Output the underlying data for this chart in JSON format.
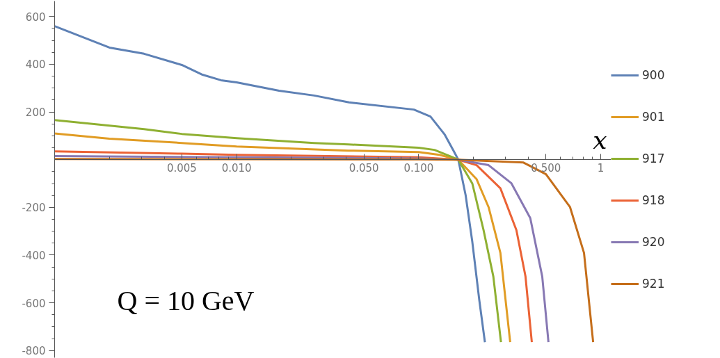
{
  "chart_data": {
    "type": "line",
    "xlabel": "x",
    "log": "x",
    "grid": false,
    "legend": "right",
    "marker": "none",
    "line_style": "solid",
    "xlim": [
      0.001,
      1.14
    ],
    "ylim": [
      -830,
      665
    ],
    "xticks": [
      {
        "value": 0.002,
        "label": null
      },
      {
        "value": 0.003,
        "label": null
      },
      {
        "value": 0.004,
        "label": null
      },
      "0.005",
      {
        "value": 0.006,
        "label": null
      },
      {
        "value": 0.007,
        "label": null
      },
      {
        "value": 0.008,
        "label": null
      },
      {
        "value": 0.009,
        "label": null
      },
      {
        "value": 0.01,
        "label": "0.010"
      },
      {
        "value": 0.02,
        "label": null
      },
      {
        "value": 0.03,
        "label": null
      },
      {
        "value": 0.04,
        "label": null
      },
      {
        "value": 0.05,
        "label": "0.050"
      },
      {
        "value": 0.06,
        "label": null
      },
      {
        "value": 0.07,
        "label": null
      },
      {
        "value": 0.08,
        "label": null
      },
      {
        "value": 0.09,
        "label": null
      },
      {
        "value": 0.1,
        "label": "0.100"
      },
      {
        "value": 0.2,
        "label": null
      },
      {
        "value": 0.3,
        "label": null
      },
      {
        "value": 0.4,
        "label": null
      },
      {
        "value": 0.5,
        "label": "0.500"
      },
      {
        "value": 0.6,
        "label": null
      },
      {
        "value": 0.7,
        "label": null
      },
      {
        "value": 0.8,
        "label": null
      },
      {
        "value": 0.9,
        "label": null
      },
      1
    ],
    "yticks": [
      -800,
      {
        "value": -750,
        "label": null
      },
      {
        "value": -700,
        "label": null
      },
      {
        "value": -650,
        "label": null
      },
      -600,
      {
        "value": -550,
        "label": null
      },
      {
        "value": -500,
        "label": null
      },
      {
        "value": -450,
        "label": null
      },
      -400,
      {
        "value": -350,
        "label": null
      },
      {
        "value": -300,
        "label": null
      },
      {
        "value": -250,
        "label": null
      },
      -200,
      {
        "value": -150,
        "label": null
      },
      {
        "value": -100,
        "label": null
      },
      {
        "value": -50,
        "label": null
      },
      {
        "value": 50,
        "label": null
      },
      {
        "value": 100,
        "label": null
      },
      {
        "value": 150,
        "label": null
      },
      200,
      {
        "value": 250,
        "label": null
      },
      {
        "value": 300,
        "label": null
      },
      {
        "value": 350,
        "label": null
      },
      400,
      {
        "value": 450,
        "label": null
      },
      {
        "value": 500,
        "label": null
      },
      {
        "value": 550,
        "label": null
      },
      600
    ],
    "annotations": [
      "Q = 10 GeV"
    ],
    "series": [
      {
        "name": "900",
        "color": "#5e81b5",
        "x": [
          0.001,
          0.002,
          0.0031,
          0.005,
          0.0065,
          0.0082,
          0.01,
          0.0171,
          0.0266,
          0.0414,
          0.094,
          0.116,
          0.139,
          0.156,
          0.165,
          0.181,
          0.197,
          0.215,
          0.231
        ],
        "values": [
          560,
          470,
          444,
          397,
          356,
          333,
          324,
          289,
          269,
          240,
          210,
          181,
          105,
          35,
          0,
          -149,
          -345,
          -587,
          -765
        ]
      },
      {
        "name": "901",
        "color": "#e19c24",
        "x": [
          0.001,
          0.002,
          0.005,
          0.01,
          0.041,
          0.1,
          0.13,
          0.165,
          0.208,
          0.242,
          0.281,
          0.318
        ],
        "values": [
          110,
          88,
          70,
          55,
          38,
          32,
          20,
          0,
          -82,
          -199,
          -391,
          -765
        ]
      },
      {
        "name": "917",
        "color": "#8fb032",
        "x": [
          0.001,
          0.0031,
          0.005,
          0.01,
          0.0266,
          0.041,
          0.1,
          0.122,
          0.146,
          0.165,
          0.197,
          0.227,
          0.257,
          0.283
        ],
        "values": [
          166,
          128,
          108,
          90,
          70,
          64,
          50,
          41,
          17,
          0,
          -100,
          -295,
          -490,
          -765
        ]
      },
      {
        "name": "918",
        "color": "#eb6235",
        "x": [
          0.001,
          0.005,
          0.01,
          0.1,
          0.165,
          0.208,
          0.281,
          0.344,
          0.386,
          0.418
        ],
        "values": [
          35,
          25,
          20,
          10,
          0,
          -23,
          -120,
          -295,
          -490,
          -765
        ]
      },
      {
        "name": "920",
        "color": "#8778b3",
        "x": [
          0.001,
          0.01,
          0.1,
          0.165,
          0.242,
          0.323,
          0.41,
          0.477,
          0.516
        ],
        "values": [
          15,
          10,
          5,
          0,
          -23,
          -99,
          -245,
          -490,
          -765
        ]
      },
      {
        "name": "921",
        "color": "#c56e1a",
        "x": [
          0.001,
          0.01,
          0.1,
          0.165,
          0.376,
          0.5,
          0.678,
          0.809,
          0.908
        ],
        "values": [
          3,
          2,
          1,
          0,
          -12,
          -61,
          -199,
          -391,
          -765
        ]
      }
    ]
  }
}
